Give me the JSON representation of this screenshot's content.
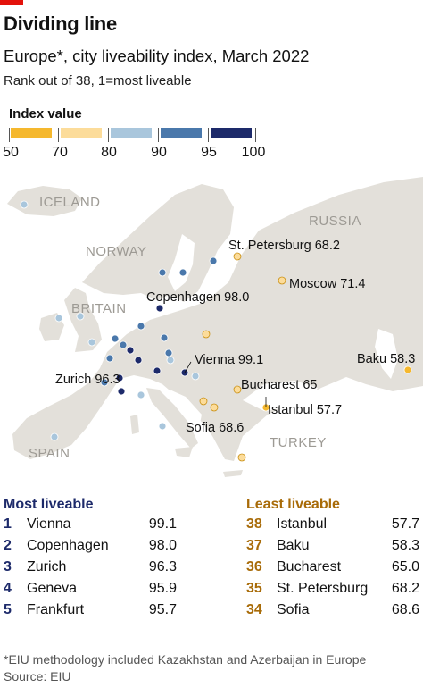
{
  "header": {
    "title": "Dividing line",
    "subtitle": "Europe*, city liveability index, March 2022",
    "subsub": "Rank out of 38, 1=most liveable"
  },
  "legend": {
    "title": "Index value",
    "stops": [
      "50",
      "70",
      "80",
      "90",
      "95",
      "100"
    ],
    "colors": [
      "#f5b82e",
      "#fcdc9a",
      "#a9c6dc",
      "#4a78ab",
      "#1d2a6a"
    ]
  },
  "map": {
    "country_labels": [
      "ICELAND",
      "RUSSIA",
      "NORWAY",
      "BRITAIN",
      "TURKEY",
      "SPAIN"
    ],
    "callouts": [
      {
        "name": "St. Petersburg",
        "value": "68.2"
      },
      {
        "name": "Moscow",
        "value": "71.4"
      },
      {
        "name": "Copenhagen",
        "value": "98.0"
      },
      {
        "name": "Baku",
        "value": "58.3"
      },
      {
        "name": "Vienna",
        "value": "99.1"
      },
      {
        "name": "Zurich",
        "value": "96.3"
      },
      {
        "name": "Bucharest",
        "value": "65"
      },
      {
        "name": "Istanbul",
        "value": "57.7"
      },
      {
        "name": "Sofia",
        "value": "68.6"
      }
    ]
  },
  "chart_data": {
    "type": "map",
    "title": "Dividing line",
    "subtitle": "Europe*, city liveability index, March 2022",
    "scale_bins": [
      50,
      70,
      80,
      90,
      95,
      100
    ],
    "labelled_cities": [
      {
        "name": "St. Petersburg",
        "value": 68.2
      },
      {
        "name": "Moscow",
        "value": 71.4
      },
      {
        "name": "Copenhagen",
        "value": 98.0
      },
      {
        "name": "Baku",
        "value": 58.3
      },
      {
        "name": "Vienna",
        "value": 99.1
      },
      {
        "name": "Zurich",
        "value": 96.3
      },
      {
        "name": "Bucharest",
        "value": 65
      },
      {
        "name": "Istanbul",
        "value": 57.7
      },
      {
        "name": "Sofia",
        "value": 68.6
      }
    ],
    "most_liveable": [
      {
        "rank": 1,
        "city": "Vienna",
        "value": 99.1
      },
      {
        "rank": 2,
        "city": "Copenhagen",
        "value": 98.0
      },
      {
        "rank": 3,
        "city": "Zurich",
        "value": 96.3
      },
      {
        "rank": 4,
        "city": "Geneva",
        "value": 95.9
      },
      {
        "rank": 5,
        "city": "Frankfurt",
        "value": 95.7
      }
    ],
    "least_liveable": [
      {
        "rank": 38,
        "city": "Istanbul",
        "value": 57.7
      },
      {
        "rank": 37,
        "city": "Baku",
        "value": 58.3
      },
      {
        "rank": 36,
        "city": "Bucharest",
        "value": 65.0
      },
      {
        "rank": 35,
        "city": "St. Petersburg",
        "value": 68.2
      },
      {
        "rank": 34,
        "city": "Sofia",
        "value": 68.6
      }
    ]
  },
  "tables": {
    "most": {
      "heading": "Most liveable",
      "color": "#1d2a6a",
      "rows": [
        {
          "rank": "1",
          "city": "Vienna",
          "value": "99.1"
        },
        {
          "rank": "2",
          "city": "Copenhagen",
          "value": "98.0"
        },
        {
          "rank": "3",
          "city": "Zurich",
          "value": "96.3"
        },
        {
          "rank": "4",
          "city": "Geneva",
          "value": "95.9"
        },
        {
          "rank": "5",
          "city": "Frankfurt",
          "value": "95.7"
        }
      ]
    },
    "least": {
      "heading": "Least liveable",
      "color": "#a86b08",
      "rows": [
        {
          "rank": "38",
          "city": "Istanbul",
          "value": "57.7"
        },
        {
          "rank": "37",
          "city": "Baku",
          "value": "58.3"
        },
        {
          "rank": "36",
          "city": "Bucharest",
          "value": "65.0"
        },
        {
          "rank": "35",
          "city": "St. Petersburg",
          "value": "68.2"
        },
        {
          "rank": "34",
          "city": "Sofia",
          "value": "68.6"
        }
      ]
    }
  },
  "footer": {
    "footnote": "*EIU methodology included Kazakhstan and Azerbaijan in Europe",
    "source": "Source: EIU"
  }
}
